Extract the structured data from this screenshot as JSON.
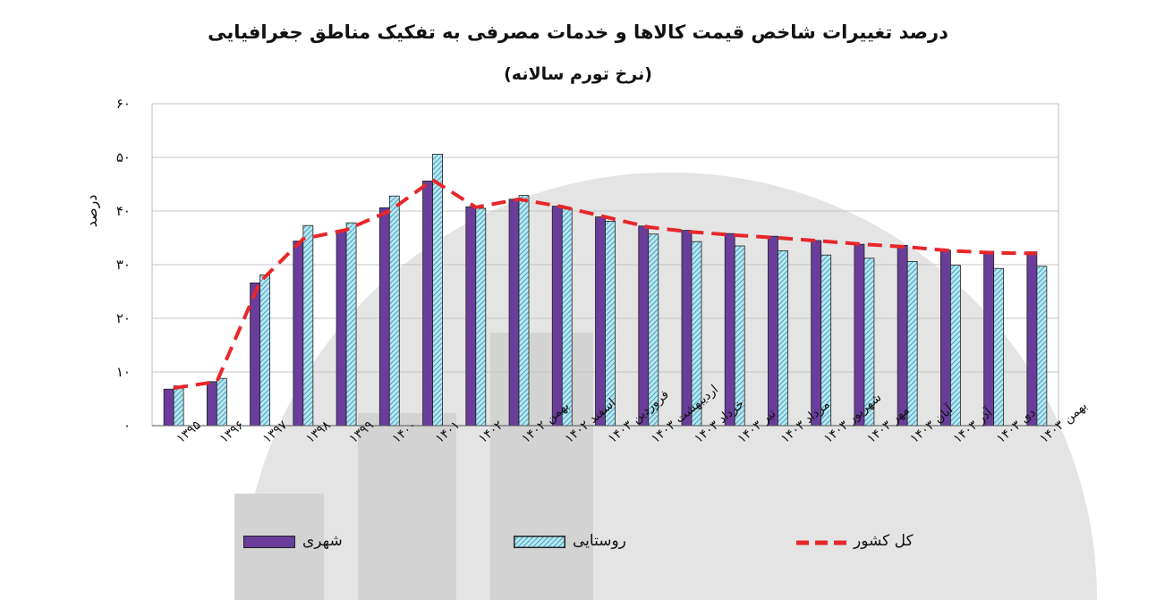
{
  "title": "درصد تغییرات شاخص قیمت کالاها و خدمات مصرفی به تفکیک مناطق جغرافیایی",
  "subtitle": "(نرخ تورم سالانه)",
  "chart_data": {
    "type": "bar",
    "title": "درصد تغییرات شاخص قیمت کالاها و خدمات مصرفی به تفکیک مناطق جغرافیایی",
    "subtitle": "(نرخ تورم سالانه)",
    "ylabel": "درصد",
    "xlabel": "",
    "ylim": [
      0,
      60
    ],
    "yticks": [
      "۰",
      "۱۰",
      "۲۰",
      "۳۰",
      "۴۰",
      "۵۰",
      "۶۰"
    ],
    "ytick_values": [
      0,
      10,
      20,
      30,
      40,
      50,
      60
    ],
    "grid": "horizontal",
    "legend_position": "bottom",
    "categories": [
      "۱۳۹۵",
      "۱۳۹۶",
      "۱۳۹۷",
      "۱۳۹۸",
      "۱۳۹۹",
      "۱۴۰۰",
      "۱۴۰۱",
      "۱۴۰۲",
      "بهمن ۱۴۰۲",
      "اسفند ۱۴۰۲",
      "فروردین ۱۴۰۳",
      "اردیبهشت ۱۴۰۳",
      "خرداد ۱۴۰۳",
      "تیر ۱۴۰۳",
      "مرداد ۱۴۰۳",
      "شهریور ۱۴۰۳",
      "مهر ۱۴۰۳",
      "آبان ۱۴۰۳",
      "آذر ۱۴۰۳",
      "دی ۱۴۰۳",
      "بهمن ۱۴۰۳"
    ],
    "series": [
      {
        "name": "شهری",
        "type": "bar",
        "color": "#6a3d9a",
        "values": [
          6.8,
          8.2,
          26.6,
          34.4,
          36.2,
          40.6,
          45.6,
          40.8,
          42.2,
          40.9,
          38.9,
          37.2,
          36.4,
          35.8,
          35.3,
          34.5,
          33.8,
          33.6,
          32.7,
          32.5,
          32.4
        ]
      },
      {
        "name": "روستایی",
        "type": "bar",
        "color": "#b7e6ef",
        "values": [
          7.4,
          8.8,
          28.1,
          37.3,
          37.8,
          42.8,
          50.6,
          40.5,
          42.9,
          40.5,
          38.1,
          35.7,
          34.3,
          33.5,
          32.6,
          31.8,
          31.2,
          30.6,
          29.9,
          29.3,
          29.7
        ]
      },
      {
        "name": "کل کشور",
        "type": "line",
        "style": "dashed",
        "color": "#e8262a",
        "values": [
          7.0,
          8.2,
          26.8,
          34.8,
          36.5,
          40.0,
          45.8,
          40.7,
          42.2,
          40.8,
          38.9,
          37.0,
          36.1,
          35.5,
          35.0,
          34.4,
          33.8,
          33.3,
          32.6,
          32.2,
          32.1
        ]
      }
    ]
  },
  "colors": {
    "urban_bar": "#6a3d9a",
    "rural_bar": "#b7e6ef",
    "rural_hatch": "#2a8fb8",
    "national_line": "#e8262a",
    "grid": "#c4c4c4",
    "watermark": "#e4e4e4"
  }
}
